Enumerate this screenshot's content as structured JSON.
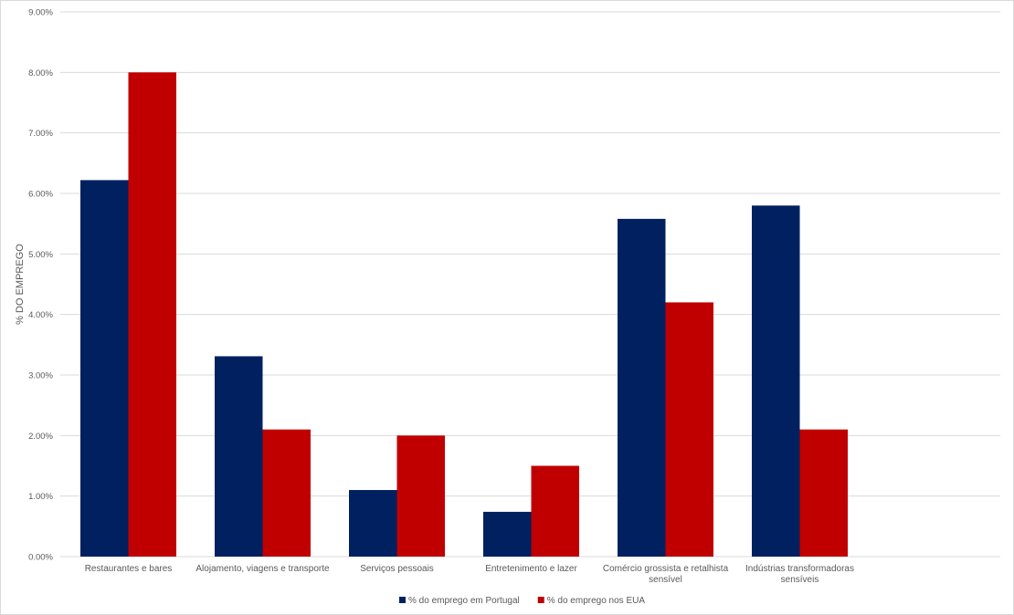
{
  "chart_data": {
    "type": "bar",
    "ylabel": "% DO EMPREGO",
    "xlabel": "",
    "ylim": [
      0,
      9
    ],
    "y_ticks": [
      "0.00%",
      "1.00%",
      "2.00%",
      "3.00%",
      "4.00%",
      "5.00%",
      "6.00%",
      "7.00%",
      "8.00%",
      "9.00%"
    ],
    "grid": true,
    "legend_position": "bottom",
    "categories": [
      [
        "Restaurantes e bares"
      ],
      [
        "Alojamento, viagens e transporte"
      ],
      [
        "Serviços pessoais"
      ],
      [
        "Entretenimento e lazer"
      ],
      [
        "Comércio grossista e retalhista",
        "sensível"
      ],
      [
        "Indústrias transformadoras",
        "sensíveis"
      ]
    ],
    "series": [
      {
        "name": "% do emprego em Portugal",
        "color": "#002060",
        "values": [
          6.22,
          3.31,
          1.1,
          0.74,
          5.58,
          5.8
        ]
      },
      {
        "name": "% do emprego nos EUA",
        "color": "#C00000",
        "values": [
          8.0,
          2.1,
          2.0,
          1.5,
          4.2,
          2.1
        ]
      }
    ]
  }
}
